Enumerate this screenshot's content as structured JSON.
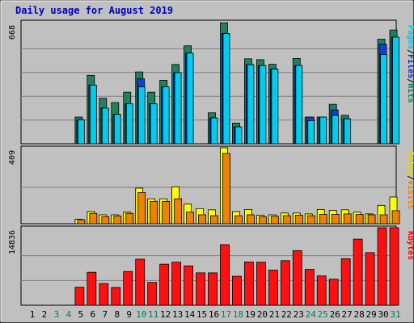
{
  "chart_data": {
    "type": "bar",
    "title": "Daily usage for August 2019",
    "categories": [
      "1",
      "2",
      "3",
      "4",
      "5",
      "6",
      "7",
      "8",
      "9",
      "10",
      "11",
      "12",
      "13",
      "14",
      "15",
      "16",
      "17",
      "18",
      "19",
      "20",
      "21",
      "22",
      "23",
      "24",
      "25",
      "26",
      "27",
      "28",
      "29",
      "30",
      "31"
    ],
    "weekend_days": [
      "3",
      "4",
      "10",
      "11",
      "17",
      "18",
      "24",
      "25",
      "31"
    ],
    "panels": [
      {
        "name": "top",
        "ymax": 668,
        "ymax_label": "668",
        "right_labels": [
          "Pages",
          "/",
          "Files",
          "/",
          "Hits"
        ],
        "right_label_colors": [
          "#00c8e8",
          "#000000",
          "#0030c0",
          "#000000",
          "#008060"
        ],
        "series": [
          {
            "name": "Hits",
            "color": "#208060",
            "values": [
              0,
              0,
              0,
              0,
              150,
              385,
              256,
              232,
              290,
              404,
              290,
              357,
              446,
              551,
              0,
              174,
              681,
              116,
              478,
              473,
              447,
              0,
              480,
              150,
              150,
              222,
              160,
              0,
              0,
              588,
              640
            ]
          },
          {
            "name": "Files",
            "color": "#1040d0",
            "values": [
              0,
              0,
              0,
              0,
              135,
              330,
              200,
              165,
              225,
              365,
              225,
              320,
              400,
              510,
              0,
              145,
              620,
              95,
              445,
              440,
              420,
              0,
              440,
              150,
              150,
              190,
              140,
              0,
              0,
              560,
              600
            ]
          },
          {
            "name": "Pages",
            "color": "#00ccf0",
            "values": [
              0,
              0,
              0,
              0,
              135,
              330,
              200,
              165,
              225,
              320,
              225,
              320,
              400,
              510,
              0,
              145,
              620,
              95,
              445,
              440,
              420,
              0,
              440,
              130,
              150,
              160,
              140,
              0,
              0,
              502,
              600
            ]
          }
        ]
      },
      {
        "name": "middle",
        "ymax": 409,
        "ymax_label": "409",
        "right_labels": [
          "Sites",
          "/",
          "Visits"
        ],
        "right_label_colors": [
          "#f0d000",
          "#000000",
          "#f08000"
        ],
        "series": [
          {
            "name": "Visits",
            "color": "#ffff00",
            "values": [
              0,
              0,
              0,
              0,
              25,
              68,
              50,
              50,
              65,
              200,
              140,
              140,
              207,
              110,
              85,
              78,
              470,
              68,
              80,
              48,
              50,
              60,
              60,
              55,
              80,
              75,
              78,
              65,
              55,
              103,
              150
            ]
          },
          {
            "name": "Sites",
            "color": "#f08000",
            "values": [
              0,
              0,
              0,
              0,
              22,
              58,
              40,
              43,
              58,
              175,
              125,
              125,
              140,
              65,
              50,
              45,
              395,
              45,
              50,
              40,
              42,
              45,
              48,
              45,
              52,
              52,
              55,
              52,
              50,
              50,
              73
            ]
          }
        ]
      },
      {
        "name": "bottom",
        "ymax": 14836,
        "ymax_label": "14836",
        "right_labels": [
          "KBytes"
        ],
        "right_label_colors": [
          "#ff0000"
        ],
        "series": [
          {
            "name": "KBytes",
            "color": "#ff1010",
            "values": [
              0,
              0,
              0,
              0,
              3600,
              6580,
              4330,
              3550,
              6730,
              9200,
              4550,
              8200,
              8600,
              7860,
              6470,
              6470,
              12100,
              5790,
              8630,
              8600,
              7010,
              8900,
              10900,
              7170,
              5860,
              5200,
              9300,
              13200,
              10500,
              15600,
              17600
            ]
          }
        ]
      }
    ]
  }
}
